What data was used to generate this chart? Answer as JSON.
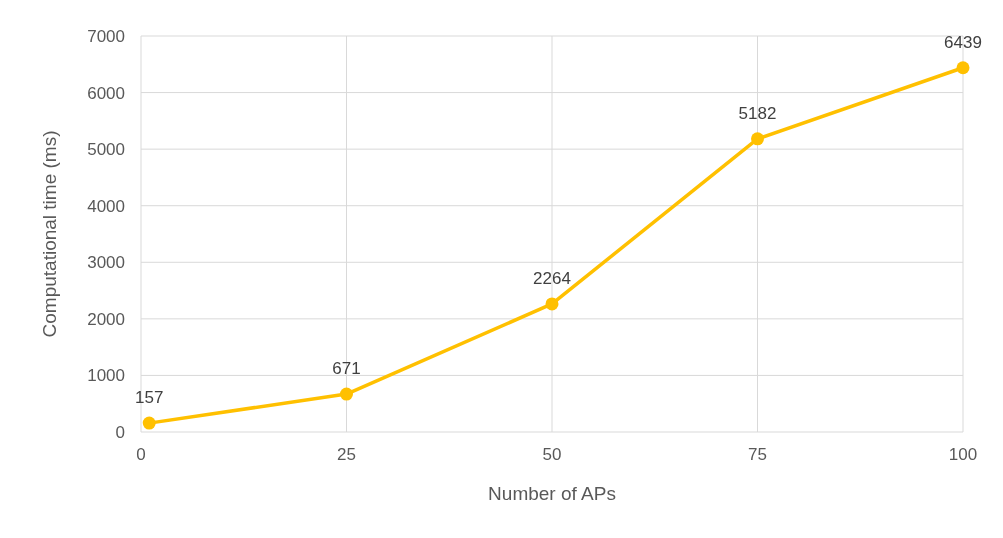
{
  "chart_data": {
    "type": "line",
    "xlabel": "Number of APs",
    "ylabel": "Computational time (ms)",
    "x": [
      1,
      25,
      50,
      75,
      100
    ],
    "series": [
      {
        "color": "#ffc000",
        "values": [
          157,
          671,
          2264,
          5182,
          6439
        ]
      }
    ],
    "xlim": [
      0,
      100
    ],
    "xticks": [
      0,
      25,
      50,
      75,
      100
    ],
    "ylim": [
      0,
      7000
    ],
    "yticks": [
      0,
      1000,
      2000,
      3000,
      4000,
      5000,
      6000,
      7000
    ],
    "grid": true,
    "marker": "circle",
    "line_style": "solid",
    "data_labels": true
  }
}
